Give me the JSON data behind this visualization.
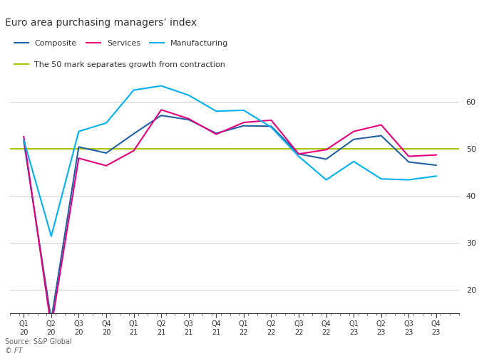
{
  "title": "Euro area purchasing managers’ index",
  "source": "Source: S&P Global",
  "copyright": "© FT",
  "legend": [
    "Composite",
    "Services",
    "Manufacturing"
  ],
  "legend_label_50": "The 50 mark separates growth from contraction",
  "colors": {
    "composite": "#1f5fa6",
    "services": "#e6007e",
    "manufacturing": "#00b0f0",
    "line50": "#a8c400",
    "grid": "#cccccc",
    "bg": "#ffffff",
    "text": "#333333",
    "axis": "#333333"
  },
  "x_labels": [
    "Q1 20",
    "Q2 20",
    "Q3 20",
    "Q4 20",
    "Q1 21",
    "Q2 21",
    "Q3 21",
    "Q4 21",
    "Q1 22",
    "Q2 22",
    "Q3 22",
    "Q4 22",
    "Q1 23",
    "Q2 23",
    "Q3 23",
    "Q4 23"
  ],
  "ylim": [
    15,
    65
  ],
  "yticks": [
    20,
    30,
    40,
    50,
    60
  ],
  "composite": [
    51.6,
    13.6,
    50.4,
    49.1,
    53.2,
    57.1,
    56.2,
    53.3,
    54.9,
    54.8,
    48.9,
    47.8,
    52.0,
    52.8,
    47.2,
    46.5
  ],
  "services": [
    52.6,
    12.0,
    48.0,
    46.4,
    49.6,
    58.3,
    56.4,
    53.1,
    55.6,
    56.1,
    48.9,
    49.8,
    53.7,
    55.1,
    48.4,
    48.7
  ],
  "manufacturing": [
    51.9,
    31.4,
    53.7,
    55.5,
    62.5,
    63.4,
    61.4,
    58.0,
    58.2,
    54.6,
    48.4,
    43.4,
    47.3,
    43.6,
    43.4,
    44.2
  ]
}
